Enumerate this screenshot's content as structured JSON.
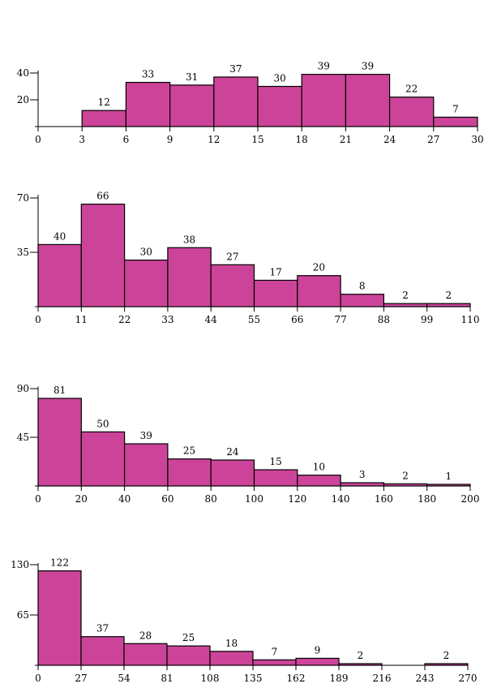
{
  "colors": {
    "bar_fill": "#cc4499",
    "bar_stroke": "#000000",
    "background": "#ffffff"
  },
  "chart_data": [
    {
      "type": "bar",
      "title": "",
      "xlabel": "",
      "ylabel": "",
      "bin_edges": [
        0,
        3,
        6,
        9,
        12,
        15,
        18,
        21,
        24,
        27,
        30
      ],
      "values": [
        0,
        12,
        33,
        31,
        37,
        30,
        39,
        39,
        22,
        7
      ],
      "data_labels": [
        "",
        "12",
        "33",
        "31",
        "37",
        "30",
        "39",
        "39",
        "22",
        "7"
      ],
      "x_tick_labels": [
        "0",
        "3",
        "6",
        "9",
        "12",
        "15",
        "18",
        "21",
        "24",
        "27",
        "30"
      ],
      "y_ticks": [
        20,
        40
      ],
      "y_tick_labels": [
        "20",
        "40"
      ],
      "xlim": [
        0,
        30
      ],
      "ylim": [
        0,
        42
      ],
      "grid": false
    },
    {
      "type": "bar",
      "title": "",
      "xlabel": "",
      "ylabel": "",
      "bin_edges": [
        0,
        11,
        22,
        33,
        44,
        55,
        66,
        77,
        88,
        99,
        110
      ],
      "values": [
        40,
        66,
        30,
        38,
        27,
        17,
        20,
        8,
        2,
        2
      ],
      "data_labels": [
        "40",
        "66",
        "30",
        "38",
        "27",
        "17",
        "20",
        "8",
        "2",
        "2"
      ],
      "x_tick_labels": [
        "0",
        "11",
        "22",
        "33",
        "44",
        "55",
        "66",
        "77",
        "88",
        "99",
        "110"
      ],
      "y_ticks": [
        35,
        70
      ],
      "y_tick_labels": [
        "35",
        "70"
      ],
      "xlim": [
        0,
        110
      ],
      "ylim": [
        0,
        72
      ],
      "grid": false
    },
    {
      "type": "bar",
      "title": "",
      "xlabel": "",
      "ylabel": "",
      "bin_edges": [
        0,
        20,
        40,
        60,
        80,
        100,
        120,
        140,
        160,
        180,
        200
      ],
      "values": [
        81,
        50,
        39,
        25,
        24,
        15,
        10,
        3,
        2,
        1
      ],
      "data_labels": [
        "81",
        "50",
        "39",
        "25",
        "24",
        "15",
        "10",
        "3",
        "2",
        "1"
      ],
      "x_tick_labels": [
        "0",
        "20",
        "40",
        "60",
        "80",
        "100",
        "120",
        "140",
        "160",
        "180",
        "200"
      ],
      "y_ticks": [
        45,
        90
      ],
      "y_tick_labels": [
        "45",
        "90"
      ],
      "xlim": [
        0,
        200
      ],
      "ylim": [
        0,
        92
      ],
      "grid": false
    },
    {
      "type": "bar",
      "title": "",
      "xlabel": "",
      "ylabel": "",
      "bin_edges": [
        0,
        27,
        54,
        81,
        108,
        135,
        162,
        189,
        216,
        243,
        270
      ],
      "values": [
        122,
        37,
        28,
        25,
        18,
        7,
        9,
        2,
        0,
        2
      ],
      "data_labels": [
        "122",
        "37",
        "28",
        "25",
        "18",
        "7",
        "9",
        "2",
        "",
        "2"
      ],
      "x_tick_labels": [
        "0",
        "27",
        "54",
        "81",
        "108",
        "135",
        "162",
        "189",
        "216",
        "243",
        "270"
      ],
      "y_ticks": [
        65,
        130
      ],
      "y_tick_labels": [
        "65",
        "130"
      ],
      "xlim": [
        0,
        270
      ],
      "ylim": [
        0,
        132
      ],
      "grid": false
    }
  ]
}
